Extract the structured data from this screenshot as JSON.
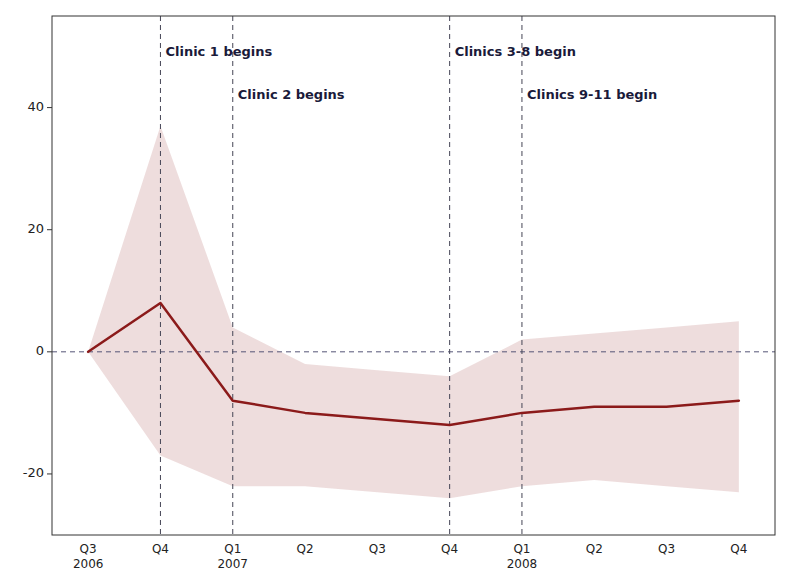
{
  "chart_data": {
    "type": "line",
    "categories": [
      "Q3\n2006",
      "Q4",
      "Q1\n2007",
      "Q2",
      "Q3",
      "Q4",
      "Q1\n2008",
      "Q2",
      "Q3",
      "Q4"
    ],
    "values": [
      0,
      8,
      -8,
      -10,
      -11,
      -12,
      -10,
      -9,
      -9,
      -8
    ],
    "ci_upper": [
      0,
      37,
      4,
      -2,
      -3,
      -4,
      2,
      3,
      4,
      5
    ],
    "ci_lower": [
      0,
      -17,
      -22,
      -22,
      -23,
      -24,
      -22,
      -21,
      -22,
      -23
    ],
    "color": "#8B1A1A",
    "hline": 0,
    "annotations": [
      {
        "x": 1,
        "y": 50,
        "text": "Clinic 1 begins"
      },
      {
        "x": 2,
        "y": 43,
        "text": "Clinic 2 begins"
      },
      {
        "x": 5,
        "y": 50,
        "text": "Clinics 3-8 begin"
      },
      {
        "x": 6,
        "y": 43,
        "text": "Clinics 9-11 begin"
      }
    ],
    "ylim": [
      -30,
      55
    ],
    "yticks": [
      -20,
      0,
      20,
      40
    ],
    "grid": false
  }
}
